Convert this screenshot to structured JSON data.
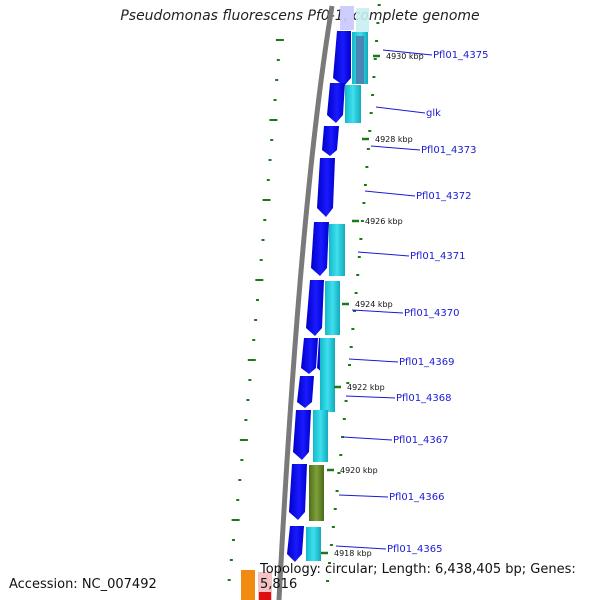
{
  "title": "Pseudomonas fluorescens Pf0-1, complete genome",
  "accession": "Accession: NC_007492",
  "topology": "Topology: circular; Length: 6,438,405 bp; Genes: 5,816",
  "colors": {
    "backbone": "#7a7a7a",
    "forward_gene": "#0a0ae6",
    "cds": "#1ec8d8",
    "cds_highlight": "#6a8a2a",
    "tick": "#1a7a1a",
    "label": "#1a1ad6"
  },
  "ticks": [
    {
      "label": "4930 kbp"
    },
    {
      "label": "4928 kbp"
    },
    {
      "label": "4926 kbp"
    },
    {
      "label": "4924 kbp"
    },
    {
      "label": "4922 kbp"
    },
    {
      "label": "4920 kbp"
    },
    {
      "label": "4918 kbp"
    }
  ],
  "genes": [
    {
      "name": "Pfl01_4375"
    },
    {
      "name": "glk"
    },
    {
      "name": "Pfl01_4373"
    },
    {
      "name": "Pfl01_4372"
    },
    {
      "name": "Pfl01_4371"
    },
    {
      "name": "Pfl01_4370"
    },
    {
      "name": "Pfl01_4369"
    },
    {
      "name": "Pfl01_4368"
    },
    {
      "name": "Pfl01_4367"
    },
    {
      "name": "Pfl01_4366"
    },
    {
      "name": "Pfl01_4365"
    }
  ]
}
